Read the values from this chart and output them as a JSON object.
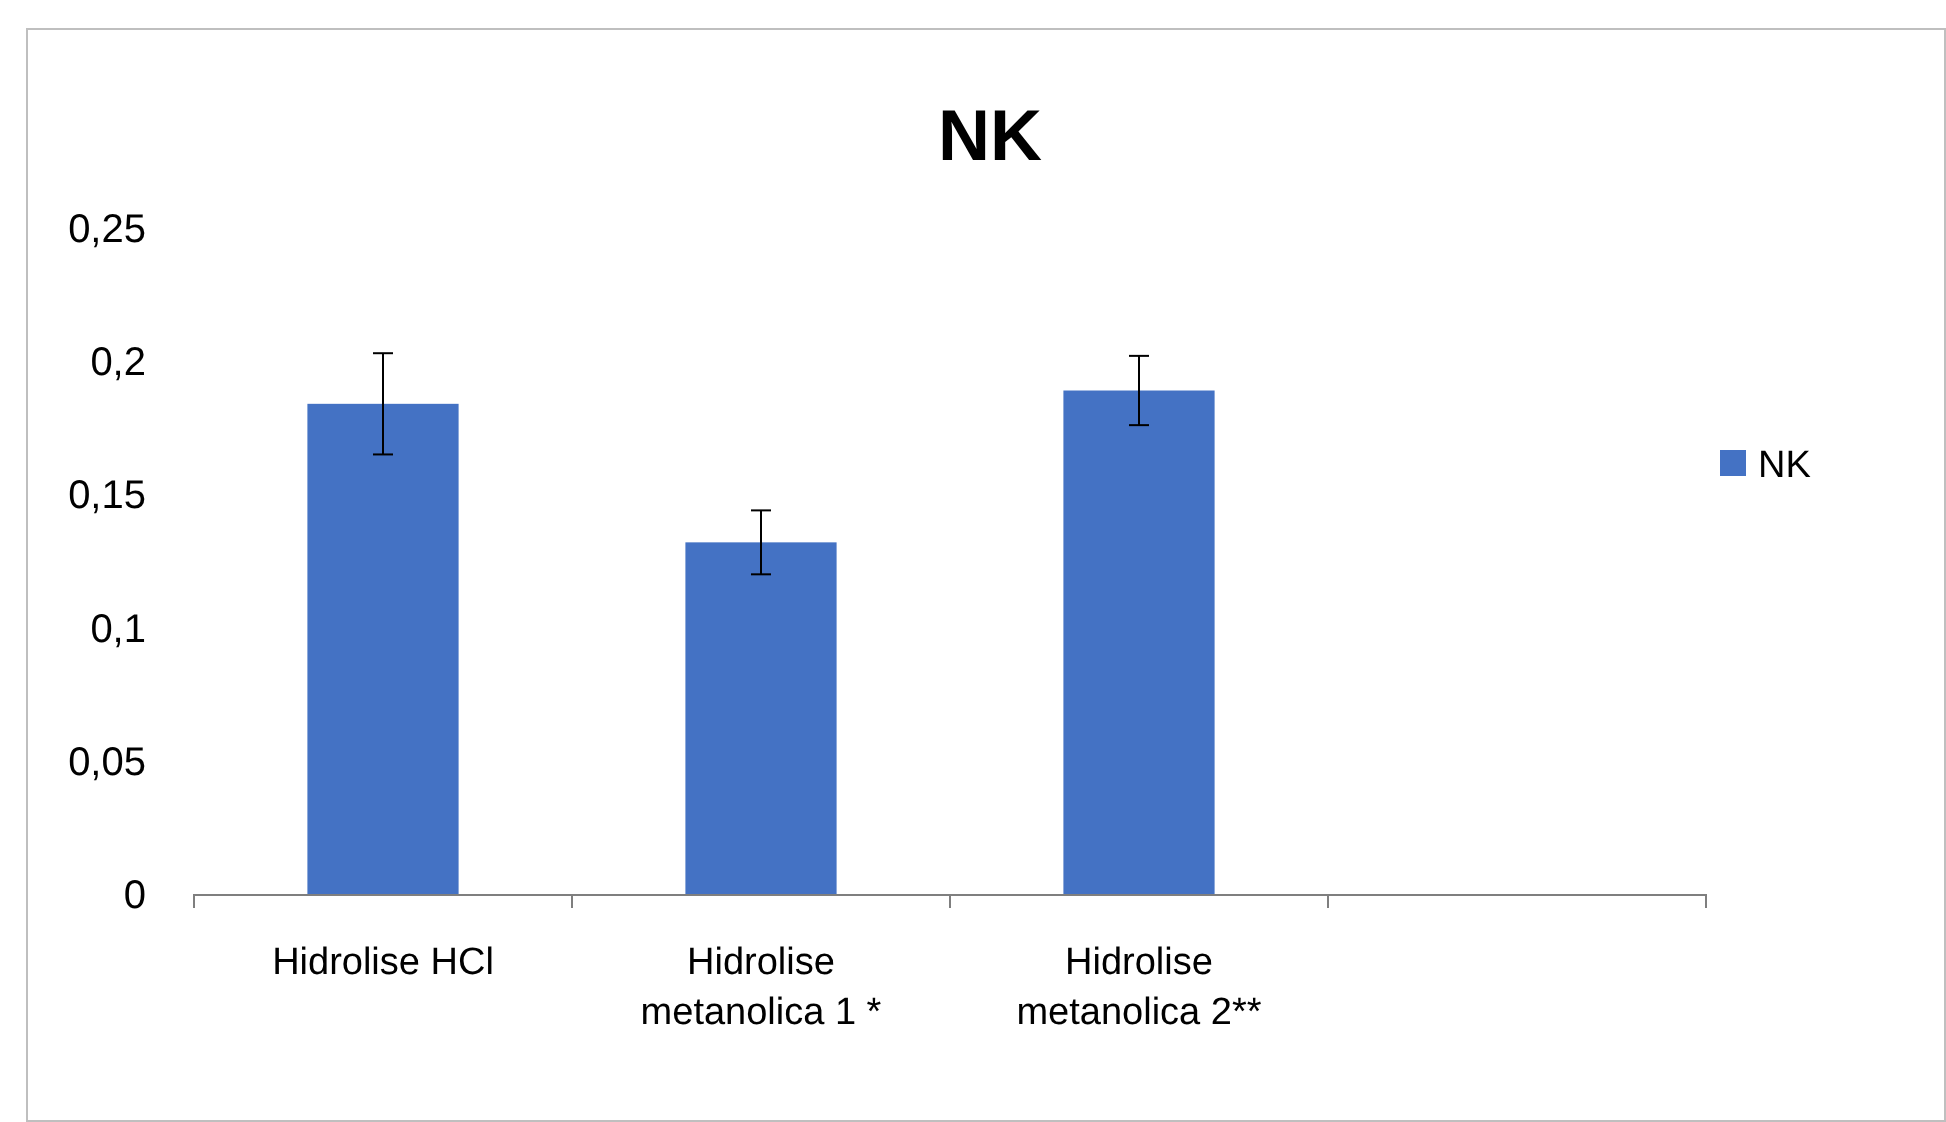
{
  "chart_data": {
    "type": "bar",
    "title": "NK",
    "categories": [
      "Hidrolise HCl",
      "Hidrolise metanolica 1 *",
      "Hidrolise metanolica 2**",
      null
    ],
    "series": [
      {
        "name": "NK",
        "color": "#4472c4",
        "values": [
          0.184,
          0.132,
          0.189,
          null
        ],
        "errors": [
          0.019,
          0.012,
          0.013,
          null
        ]
      }
    ],
    "ylim": [
      0,
      0.25
    ],
    "yticks": [
      {
        "value": 0,
        "label": "0"
      },
      {
        "value": 0.05,
        "label": "0,05"
      },
      {
        "value": 0.1,
        "label": "0,1"
      },
      {
        "value": 0.15,
        "label": "0,15"
      },
      {
        "value": 0.2,
        "label": "0,2"
      },
      {
        "value": 0.25,
        "label": "0,25"
      }
    ],
    "grid": false,
    "legend": "right"
  }
}
